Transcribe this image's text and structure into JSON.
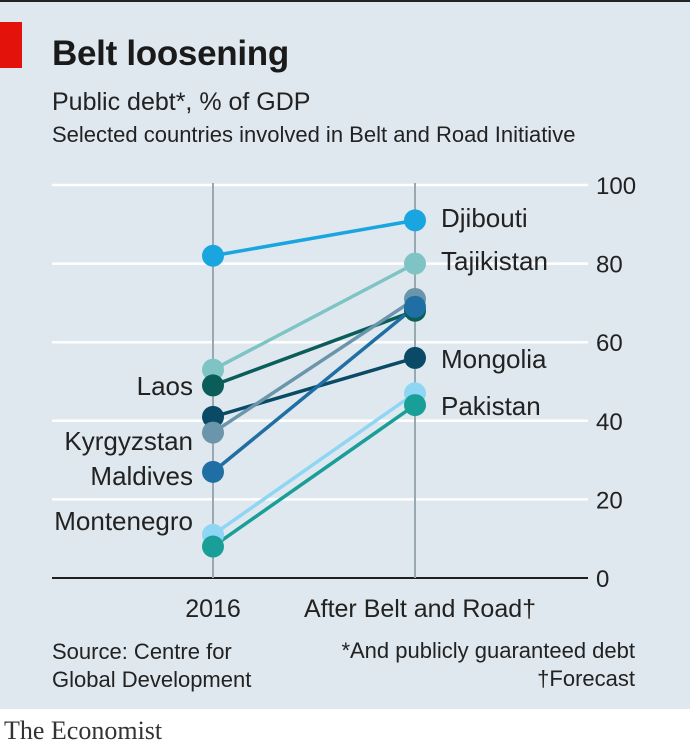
{
  "header": {
    "title": "Belt loosening",
    "subtitle": "Public debt*, % of GDP",
    "subsubtitle": "Selected countries involved in Belt and Road Initiative"
  },
  "footer": {
    "source": "Source: Centre for\nGlobal Development",
    "note_asterisk": "*And publicly guaranteed debt",
    "note_dagger": "†Forecast",
    "brand": "The Economist"
  },
  "colors": {
    "background": "#dfe8ee",
    "accent_red": "#e3120b",
    "grid": "#ffffff",
    "axis": "#222222"
  },
  "chart_data": {
    "type": "line",
    "categories": [
      "2016",
      "After Belt and Road†"
    ],
    "ylim": [
      0,
      100
    ],
    "yticks": [
      0,
      20,
      40,
      60,
      80,
      100
    ],
    "grid": true,
    "series": [
      {
        "name": "Djibouti",
        "values": [
          82,
          91
        ],
        "color": "#19a5e0",
        "label_side": "right"
      },
      {
        "name": "Tajikistan",
        "values": [
          53,
          80
        ],
        "color": "#7ec4c5",
        "label_side": "right"
      },
      {
        "name": "Laos",
        "values": [
          49,
          68
        ],
        "color": "#0b5d5a",
        "label_side": "left"
      },
      {
        "name": "",
        "values": [
          41,
          56
        ],
        "color": "#0a4a66",
        "label_side": "none"
      },
      {
        "name": "Kyrgyzstan",
        "values": [
          37,
          71
        ],
        "color": "#6a95ab",
        "label_side": "left"
      },
      {
        "name": "Maldives",
        "values": [
          27,
          69
        ],
        "color": "#1f6fa5",
        "label_side": "left"
      },
      {
        "name": "Montenegro",
        "values": [
          11,
          47
        ],
        "color": "#8fd6f5",
        "label_side": "left"
      },
      {
        "name": "",
        "values": [
          8,
          44
        ],
        "color": "#1a9e98",
        "label_side": "none"
      }
    ],
    "right_labels": [
      "Djibouti",
      "Tajikistan",
      "Mongolia",
      "Pakistan"
    ],
    "left_labels": [
      "Laos",
      "Kyrgyzstan",
      "Maldives",
      "Montenegro"
    ]
  }
}
